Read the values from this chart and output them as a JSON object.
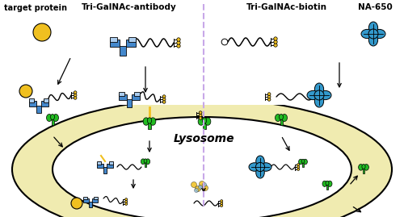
{
  "bg_color": "#ffffff",
  "lysosome_outer_color": "#f0ebb0",
  "lysosome_inner_color": "#ffffff",
  "lysosome_border_color": "#111111",
  "antibody_color": "#4488cc",
  "antibody_light_color": "#aaccee",
  "receptor_color": "#22bb22",
  "galnac_color": "#f0c020",
  "target_protein_color": "#f0c020",
  "na650_color": "#3399cc",
  "na650_dark_color": "#1177aa",
  "divider_color": "#c8a8e8",
  "text_labels": {
    "target_protein": "target protein",
    "tri_galnac_antibody": "Tri-GalNAc-antibody",
    "tri_galnac_biotin": "Tri-GalNAc-biotin",
    "na650": "NA-650",
    "lysosome": "Lysosome"
  },
  "figsize": [
    5.0,
    2.69
  ],
  "dpi": 100
}
